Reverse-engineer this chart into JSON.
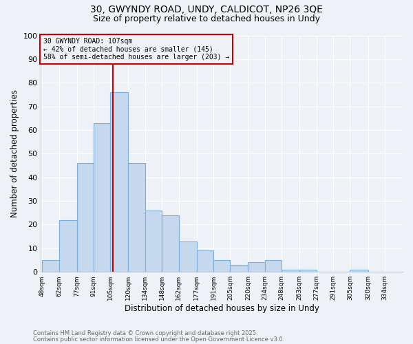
{
  "title_line1": "30, GWYNDY ROAD, UNDY, CALDICOT, NP26 3QE",
  "title_line2": "Size of property relative to detached houses in Undy",
  "bin_edges": [
    48,
    62,
    77,
    91,
    105,
    120,
    134,
    148,
    162,
    177,
    191,
    205,
    220,
    234,
    248,
    263,
    277,
    291,
    305,
    320,
    334
  ],
  "counts": [
    5,
    22,
    46,
    63,
    76,
    46,
    26,
    24,
    13,
    9,
    5,
    3,
    4,
    5,
    1,
    1,
    0,
    0,
    1,
    0
  ],
  "bin_labels": [
    "48sqm",
    "62sqm",
    "77sqm",
    "91sqm",
    "105sqm",
    "120sqm",
    "134sqm",
    "148sqm",
    "162sqm",
    "177sqm",
    "191sqm",
    "205sqm",
    "220sqm",
    "234sqm",
    "248sqm",
    "263sqm",
    "277sqm",
    "291sqm",
    "305sqm",
    "320sqm",
    "334sqm"
  ],
  "bar_color": "#c5d8ed",
  "bar_edge_color": "#7aafe0",
  "property_size": 107,
  "vline_color": "#cc0000",
  "xlabel": "Distribution of detached houses by size in Undy",
  "ylabel": "Number of detached properties",
  "annotation_text": "30 GWYNDY ROAD: 107sqm\n← 42% of detached houses are smaller (145)\n58% of semi-detached houses are larger (203) →",
  "annotation_box_color": "#cc0000",
  "footnote1": "Contains HM Land Registry data © Crown copyright and database right 2025.",
  "footnote2": "Contains public sector information licensed under the Open Government Licence v3.0.",
  "background_color": "#eef2f7",
  "ylim": [
    0,
    100
  ],
  "yticks": [
    0,
    10,
    20,
    30,
    40,
    50,
    60,
    70,
    80,
    90,
    100
  ],
  "grid_color": "#ffffff",
  "spine_color": "#cccccc"
}
